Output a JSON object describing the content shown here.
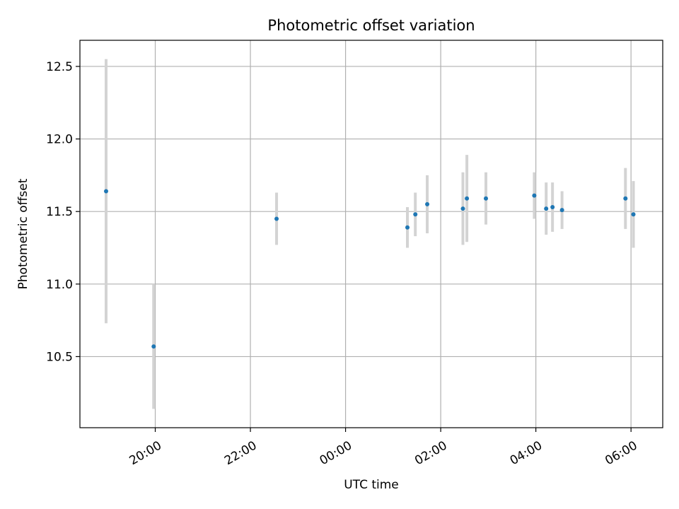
{
  "chart_data": {
    "type": "scatter",
    "title": "Photometric offset variation",
    "xlabel": "UTC time",
    "ylabel": "Photometric offset",
    "x_axis_type": "time",
    "x_ticks": [
      "20:00",
      "22:00",
      "00:00",
      "02:00",
      "04:00",
      "06:00"
    ],
    "x_tick_times": [
      "2000-01-01T20:00",
      "2000-01-01T22:00",
      "2000-01-02T00:00",
      "2000-01-02T02:00",
      "2000-01-02T04:00",
      "2000-01-02T06:00"
    ],
    "xlim": [
      "2000-01-01T18:25",
      "2000-01-02T06:40"
    ],
    "y_ticks": [
      10.5,
      11.0,
      11.5,
      12.0,
      12.5
    ],
    "ylim": [
      10.01,
      12.68
    ],
    "grid": true,
    "marker_color": "#1f77b4",
    "errorbar_color": "#d3d3d3",
    "points": [
      {
        "time": "2000-01-01T18:58",
        "y": 11.64,
        "err": 0.91
      },
      {
        "time": "2000-01-01T19:58",
        "y": 10.57,
        "err": 0.43
      },
      {
        "time": "2000-01-01T22:33",
        "y": 11.45,
        "err": 0.18
      },
      {
        "time": "2000-01-02T01:18",
        "y": 11.39,
        "err": 0.14
      },
      {
        "time": "2000-01-02T01:28",
        "y": 11.48,
        "err": 0.15
      },
      {
        "time": "2000-01-02T01:43",
        "y": 11.55,
        "err": 0.2
      },
      {
        "time": "2000-01-02T02:28",
        "y": 11.52,
        "err": 0.25
      },
      {
        "time": "2000-01-02T02:33",
        "y": 11.59,
        "err": 0.3
      },
      {
        "time": "2000-01-02T02:57",
        "y": 11.59,
        "err": 0.18
      },
      {
        "time": "2000-01-02T03:58",
        "y": 11.61,
        "err": 0.16
      },
      {
        "time": "2000-01-02T04:13",
        "y": 11.52,
        "err": 0.18
      },
      {
        "time": "2000-01-02T04:21",
        "y": 11.53,
        "err": 0.17
      },
      {
        "time": "2000-01-02T04:33",
        "y": 11.51,
        "err": 0.13
      },
      {
        "time": "2000-01-02T05:53",
        "y": 11.59,
        "err": 0.21
      },
      {
        "time": "2000-01-02T06:03",
        "y": 11.48,
        "err": 0.23
      }
    ]
  }
}
